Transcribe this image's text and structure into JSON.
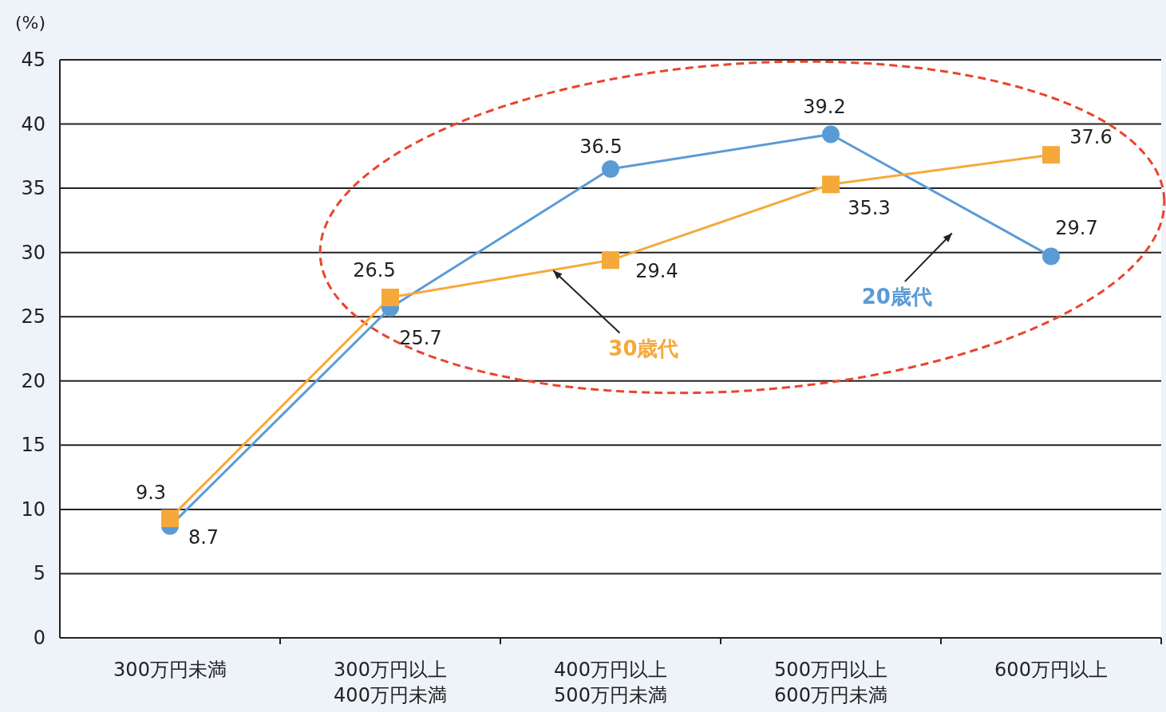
{
  "chart_data": {
    "type": "line",
    "ylabel": "(%)",
    "categories": [
      "300万円未満",
      "300万円以上\n400万円未満",
      "400万円以上\n500万円未満",
      "500万円以上\n600万円未満",
      "600万円以上"
    ],
    "series": [
      {
        "name": "20歳代",
        "color": "#5b9bd5",
        "marker": "circle",
        "values": [
          8.7,
          25.7,
          36.5,
          39.2,
          29.7
        ]
      },
      {
        "name": "30歳代",
        "color": "#f5a93a",
        "marker": "square",
        "values": [
          9.3,
          26.5,
          29.4,
          35.3,
          37.6
        ]
      }
    ],
    "ylim": [
      0,
      45
    ],
    "yticks": [
      0,
      5,
      10,
      15,
      20,
      25,
      30,
      35,
      40,
      45
    ],
    "grid": "y",
    "data_labels": true,
    "line_style": "solid"
  }
}
